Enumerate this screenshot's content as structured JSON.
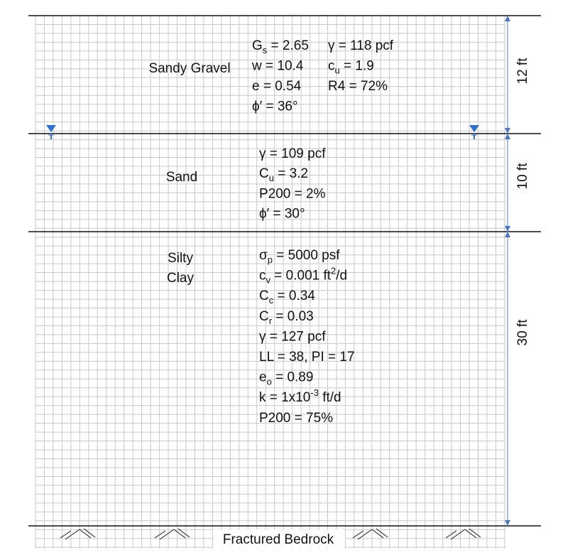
{
  "layers": [
    {
      "name": [
        "Sandy Gravel"
      ],
      "columns": [
        [
          [
            {
              "text": "G"
            },
            {
              "sub": "s"
            },
            {
              "text": " = 2.65"
            }
          ],
          [
            {
              "text": "w = 10.4"
            }
          ],
          [
            {
              "text": "e = 0.54"
            }
          ],
          [
            {
              "text": "ϕ′ = 36°"
            }
          ]
        ],
        [
          [
            {
              "text": "γ = 118 pcf"
            }
          ],
          [
            {
              "text": "c"
            },
            {
              "sub": "u"
            },
            {
              "text": " = 1.9"
            }
          ],
          [
            {
              "text": "R4 = 72%"
            }
          ]
        ]
      ]
    },
    {
      "name": [
        "Sand"
      ],
      "columns": [
        [
          [
            {
              "text": "γ = 109 pcf"
            }
          ],
          [
            {
              "text": "C"
            },
            {
              "sub": "u"
            },
            {
              "text": " = 3.2"
            }
          ],
          [
            {
              "text": "P200 = 2%"
            }
          ],
          [
            {
              "text": "ϕ′ = 30°"
            }
          ]
        ]
      ]
    },
    {
      "name": [
        "Silty",
        "Clay"
      ],
      "columns": [
        [
          [
            {
              "text": "σ"
            },
            {
              "sub": "p"
            },
            {
              "text": " = 5000 psf"
            }
          ],
          [
            {
              "text": "c"
            },
            {
              "sub": "v"
            },
            {
              "text": " = 0.001 ft"
            },
            {
              "sup": "2"
            },
            {
              "text": "/d"
            }
          ],
          [
            {
              "text": "C"
            },
            {
              "sub": "c"
            },
            {
              "text": " = 0.34"
            }
          ],
          [
            {
              "text": "C"
            },
            {
              "sub": "r"
            },
            {
              "text": " = 0.03"
            }
          ],
          [
            {
              "text": "γ = 127 pcf"
            }
          ],
          [
            {
              "text": "LL = 38, PI = 17"
            }
          ],
          [
            {
              "text": "e"
            },
            {
              "sub": "o"
            },
            {
              "text": " = 0.89"
            }
          ],
          [
            {
              "text": "k = 1x10"
            },
            {
              "sup": "-3"
            },
            {
              "text": " ft/d"
            }
          ],
          [
            {
              "text": "P200 = 75%"
            }
          ]
        ]
      ]
    }
  ],
  "dimensions": [
    "12 ft",
    "10 ft",
    "30 ft"
  ],
  "bedrock": "Fractured Bedrock"
}
